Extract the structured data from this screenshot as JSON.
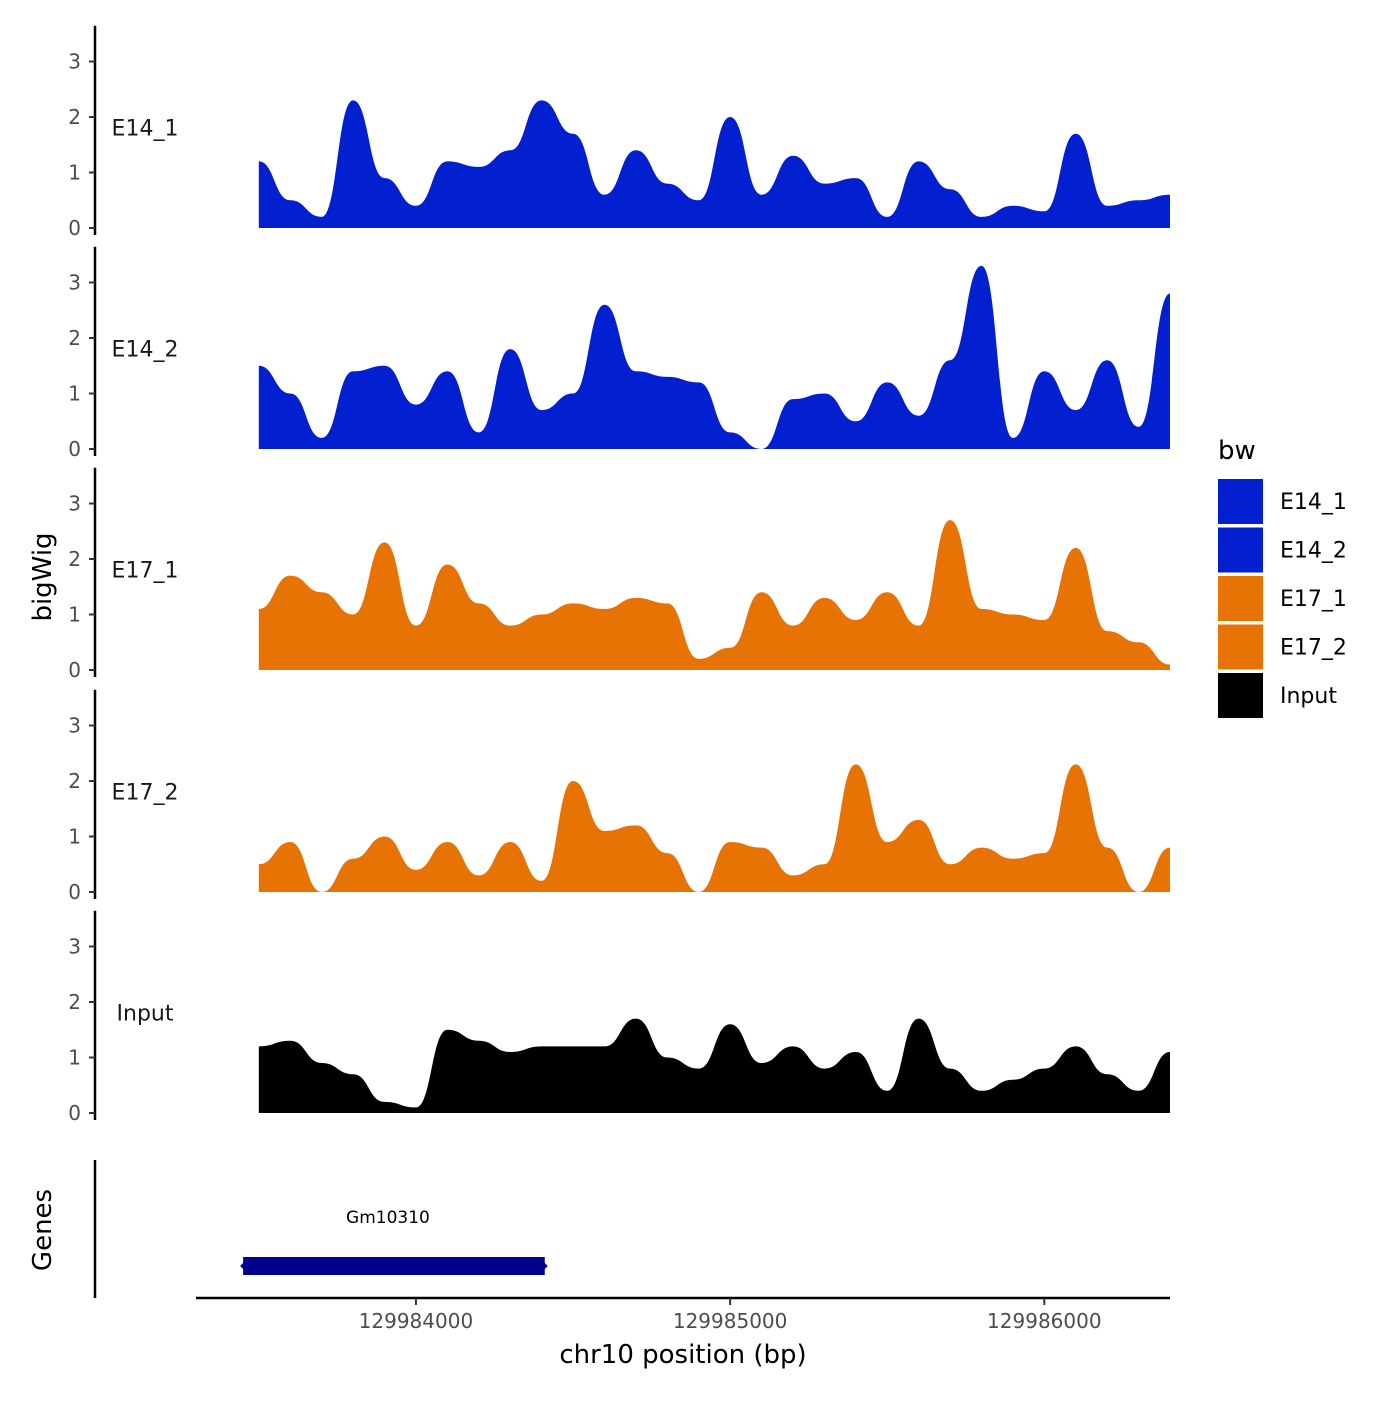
{
  "chart_data": {
    "type": "area",
    "y_axis_title": "bigWig",
    "genes_axis_title": "Genes",
    "x_axis_title": "chr10 position (bp)",
    "x_range": [
      129983300,
      129986400
    ],
    "x_ticks": [
      {
        "value": 129984000,
        "label": "129984000"
      },
      {
        "value": 129985000,
        "label": "129985000"
      },
      {
        "value": 129986000,
        "label": "129986000"
      }
    ],
    "ylim": [
      0,
      3.5
    ],
    "y_ticks": [
      {
        "value": 0,
        "label": "0"
      },
      {
        "value": 1,
        "label": "1"
      },
      {
        "value": 2,
        "label": "2"
      },
      {
        "value": 3,
        "label": "3"
      }
    ],
    "legend": {
      "title": "bw",
      "entries": [
        {
          "label": "E14_1",
          "color": "#0220d0"
        },
        {
          "label": "E14_2",
          "color": "#0220d0"
        },
        {
          "label": "E17_1",
          "color": "#e87305"
        },
        {
          "label": "E17_2",
          "color": "#e87305"
        },
        {
          "label": "Input",
          "color": "#000000"
        }
      ]
    },
    "x_points": [
      129983500,
      129983600,
      129983700,
      129983800,
      129983900,
      129984000,
      129984100,
      129984200,
      129984300,
      129984400,
      129984500,
      129984600,
      129984700,
      129984800,
      129984900,
      129985000,
      129985100,
      129985200,
      129985300,
      129985400,
      129985500,
      129985600,
      129985700,
      129985800,
      129985900,
      129986000,
      129986100,
      129986200,
      129986300,
      129986400
    ],
    "series": [
      {
        "name": "E14_1",
        "color": "#0220d0",
        "values": [
          1.2,
          0.5,
          0.2,
          2.3,
          0.9,
          0.4,
          1.2,
          1.1,
          1.4,
          2.3,
          1.7,
          0.6,
          1.4,
          0.8,
          0.5,
          2.0,
          0.6,
          1.3,
          0.8,
          0.9,
          0.2,
          1.2,
          0.7,
          0.2,
          0.4,
          0.3,
          1.7,
          0.4,
          0.5,
          0.6
        ]
      },
      {
        "name": "E14_2",
        "color": "#0220d0",
        "values": [
          1.5,
          1.0,
          0.2,
          1.4,
          1.5,
          0.8,
          1.4,
          0.3,
          1.8,
          0.7,
          1.0,
          2.6,
          1.4,
          1.3,
          1.2,
          0.3,
          0.0,
          0.9,
          1.0,
          0.5,
          1.2,
          0.6,
          1.6,
          3.3,
          0.2,
          1.4,
          0.7,
          1.6,
          0.4,
          2.8
        ]
      },
      {
        "name": "E17_1",
        "color": "#e87305",
        "values": [
          1.1,
          1.7,
          1.4,
          1.0,
          2.3,
          0.8,
          1.9,
          1.2,
          0.8,
          1.0,
          1.2,
          1.1,
          1.3,
          1.2,
          0.2,
          0.4,
          1.4,
          0.8,
          1.3,
          0.9,
          1.4,
          0.8,
          2.7,
          1.1,
          1.0,
          0.9,
          2.2,
          0.7,
          0.5,
          0.1
        ]
      },
      {
        "name": "E17_2",
        "color": "#e87305",
        "values": [
          0.5,
          0.9,
          0.0,
          0.6,
          1.0,
          0.4,
          0.9,
          0.3,
          0.9,
          0.2,
          2.0,
          1.1,
          1.2,
          0.7,
          0.0,
          0.9,
          0.8,
          0.3,
          0.5,
          2.3,
          0.9,
          1.3,
          0.5,
          0.8,
          0.6,
          0.7,
          2.3,
          0.8,
          0.0,
          0.8
        ]
      },
      {
        "name": "Input",
        "color": "#000000",
        "values": [
          1.2,
          1.3,
          0.9,
          0.7,
          0.2,
          0.1,
          1.5,
          1.3,
          1.1,
          1.2,
          1.2,
          1.2,
          1.7,
          1.0,
          0.8,
          1.6,
          0.9,
          1.2,
          0.8,
          1.1,
          0.4,
          1.7,
          0.8,
          0.4,
          0.6,
          0.8,
          1.2,
          0.7,
          0.4,
          1.1
        ]
      }
    ],
    "genes": [
      {
        "name": "Gm10310",
        "start": 129983450,
        "end": 129984410,
        "color": "#00008b"
      }
    ]
  }
}
